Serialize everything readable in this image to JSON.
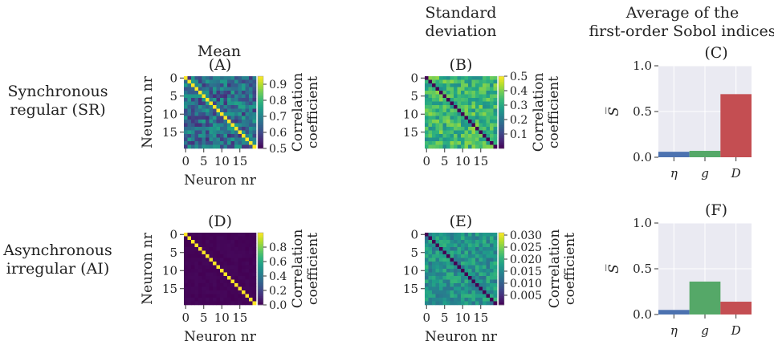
{
  "column_titles": {
    "mean": "Mean",
    "std_line1": "Standard",
    "std_line2": "deviation",
    "sobol_line1": "Average of the",
    "sobol_line2": "first-order Sobol indices"
  },
  "row_labels": {
    "sr_line1": "Synchronous",
    "sr_line2": "regular (SR)",
    "ai_line1": "Asynchronous",
    "ai_line2": "irregular (AI)"
  },
  "chart_data": [
    {
      "id": "A",
      "type": "heatmap",
      "title": "(A)",
      "xlabel": "Neuron nr",
      "ylabel": "Neuron nr",
      "size": 20,
      "xticks": [
        "0",
        "5",
        "10",
        "15"
      ],
      "yticks": [
        "0",
        "5",
        "10",
        "15"
      ],
      "diagonal_value": 1.0,
      "off_diagonal_mean": 0.66,
      "off_diagonal_spread": 0.1,
      "colorbar": {
        "label_line1": "Correlation",
        "label_line2": "coefficient",
        "range": [
          0.5,
          0.95
        ],
        "ticks": [
          "0.5",
          "0.6",
          "0.7",
          "0.8",
          "0.9"
        ],
        "tick_values": [
          0.5,
          0.6,
          0.7,
          0.8,
          0.9
        ]
      }
    },
    {
      "id": "B",
      "type": "heatmap",
      "title": "(B)",
      "size": 20,
      "xticks": [
        "0",
        "5",
        "10",
        "15"
      ],
      "yticks": [
        "0",
        "5",
        "10",
        "15"
      ],
      "diagonal_value": 0.0,
      "off_diagonal_mean": 0.33,
      "off_diagonal_spread": 0.09,
      "colorbar": {
        "label_line1": "Correlation",
        "label_line2": "coefficient",
        "range": [
          0.0,
          0.5
        ],
        "ticks": [
          "0.1",
          "0.2",
          "0.3",
          "0.4",
          "0.5"
        ],
        "tick_values": [
          0.1,
          0.2,
          0.3,
          0.4,
          0.5
        ]
      }
    },
    {
      "id": "C",
      "type": "bar",
      "title": "(C)",
      "ylabel": "S̅",
      "ylim": [
        0,
        1.0
      ],
      "yticks": [
        "0.0",
        "0.5",
        "1.0"
      ],
      "ytick_values": [
        0,
        0.5,
        1.0
      ],
      "categories": [
        "η",
        "g",
        "D"
      ],
      "values": [
        0.06,
        0.07,
        0.69
      ],
      "colors": [
        "#4c72b0",
        "#55a868",
        "#c44e52"
      ],
      "grid": true
    },
    {
      "id": "D",
      "type": "heatmap",
      "title": "(D)",
      "xlabel": "Neuron nr",
      "ylabel": "Neuron nr",
      "size": 20,
      "xticks": [
        "0",
        "5",
        "10",
        "15"
      ],
      "yticks": [
        "0",
        "5",
        "10",
        "15"
      ],
      "diagonal_value": 1.0,
      "off_diagonal_mean": 0.01,
      "off_diagonal_spread": 0.01,
      "colorbar": {
        "label_line1": "Correlation",
        "label_line2": "coefficient",
        "range": [
          0.0,
          1.0
        ],
        "ticks": [
          "0.0",
          "0.2",
          "0.4",
          "0.6",
          "0.8"
        ],
        "tick_values": [
          0.0,
          0.2,
          0.4,
          0.6,
          0.8
        ]
      }
    },
    {
      "id": "E",
      "type": "heatmap",
      "title": "(E)",
      "xlabel": "Neuron nr",
      "size": 20,
      "xticks": [
        "0",
        "5",
        "10",
        "15"
      ],
      "yticks": [
        "0",
        "5",
        "10",
        "15"
      ],
      "diagonal_value": 0.0,
      "off_diagonal_mean": 0.0165,
      "off_diagonal_spread": 0.0045,
      "colorbar": {
        "label_line1": "Correlation",
        "label_line2": "coefficient",
        "range": [
          0.001,
          0.031
        ],
        "ticks": [
          "0.005",
          "0.010",
          "0.015",
          "0.020",
          "0.025",
          "0.030"
        ],
        "tick_values": [
          0.005,
          0.01,
          0.015,
          0.02,
          0.025,
          0.03
        ]
      }
    },
    {
      "id": "F",
      "type": "bar",
      "title": "(F)",
      "ylabel": "S̅",
      "ylim": [
        0,
        1.0
      ],
      "yticks": [
        "0.0",
        "0.5",
        "1.0"
      ],
      "ytick_values": [
        0,
        0.5,
        1.0
      ],
      "categories": [
        "η",
        "g",
        "D"
      ],
      "values": [
        0.05,
        0.36,
        0.14
      ],
      "colors": [
        "#4c72b0",
        "#55a868",
        "#c44e52"
      ],
      "grid": true
    }
  ]
}
